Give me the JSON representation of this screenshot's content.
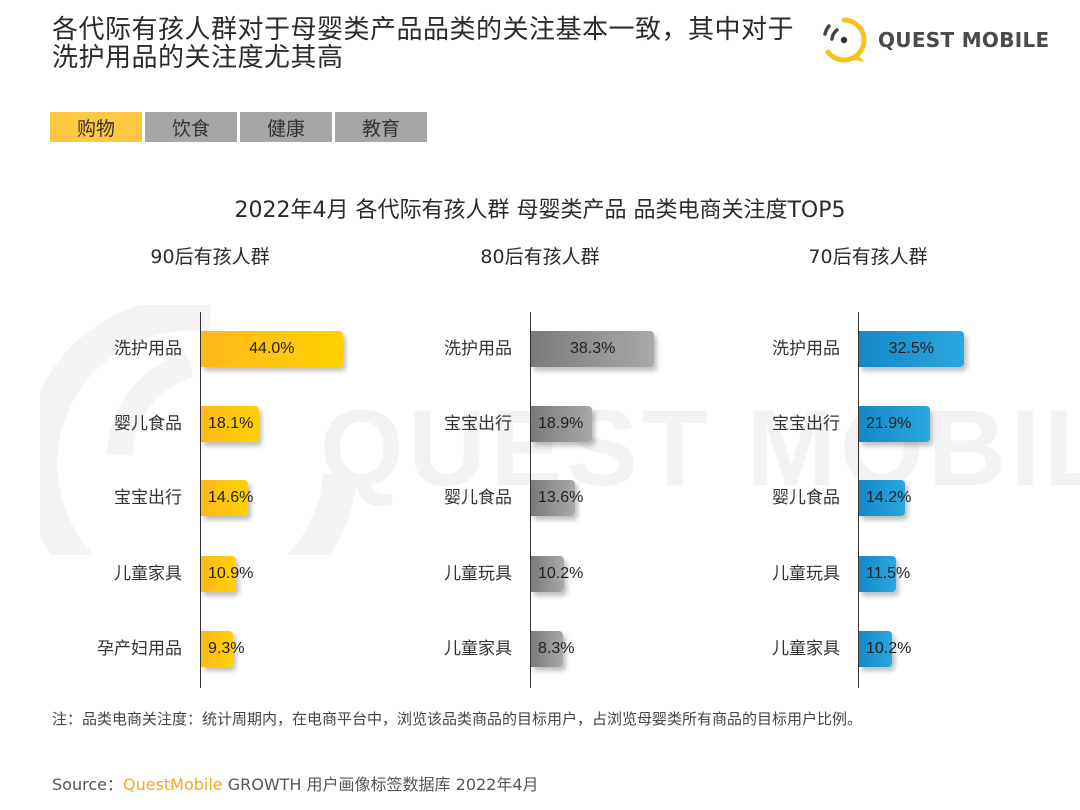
{
  "header": {
    "headline_line1": "各代际有孩人群对于母婴类产品品类的关注基本一致，其中对于",
    "headline_line2": "洗护用品的关注度尤其高",
    "logo_text": "QUEST MOBILE"
  },
  "tabs": [
    {
      "label": "购物",
      "active": true
    },
    {
      "label": "饮食",
      "active": false
    },
    {
      "label": "健康",
      "active": false
    },
    {
      "label": "教育",
      "active": false
    }
  ],
  "watermark": "QUEST MOBILE",
  "colors": {
    "yellow": "#ffc20e",
    "gray": "#8a8a8a",
    "blue": "#1e9ad6",
    "tab_active": "#ffc843",
    "tab_inactive": "#a6a6a6",
    "brand_orange": "#f5a623"
  },
  "chart_data": [
    {
      "type": "bar",
      "orientation": "horizontal",
      "title": "2022年4月 各代际有孩人群 母婴类产品 品类电商关注度TOP5",
      "subtitle": "90后有孩人群",
      "categories": [
        "洗护用品",
        "婴儿食品",
        "宝宝出行",
        "儿童家具",
        "孕产妇用品"
      ],
      "values": [
        44.0,
        18.1,
        14.6,
        10.9,
        9.3
      ],
      "labels": [
        "44.0%",
        "18.1%",
        "14.6%",
        "10.9%",
        "9.3%"
      ],
      "unit": "%",
      "color": "#ffc20e"
    },
    {
      "type": "bar",
      "orientation": "horizontal",
      "title": "2022年4月 各代际有孩人群 母婴类产品 品类电商关注度TOP5",
      "subtitle": "80后有孩人群",
      "categories": [
        "洗护用品",
        "宝宝出行",
        "婴儿食品",
        "儿童玩具",
        "儿童家具"
      ],
      "values": [
        38.3,
        18.9,
        13.6,
        10.2,
        8.3
      ],
      "labels": [
        "38.3%",
        "18.9%",
        "13.6%",
        "10.2%",
        "8.3%"
      ],
      "unit": "%",
      "color": "#8a8a8a"
    },
    {
      "type": "bar",
      "orientation": "horizontal",
      "title": "2022年4月 各代际有孩人群 母婴类产品 品类电商关注度TOP5",
      "subtitle": "70后有孩人群",
      "categories": [
        "洗护用品",
        "宝宝出行",
        "婴儿食品",
        "儿童玩具",
        "儿童家具"
      ],
      "values": [
        32.5,
        21.9,
        14.2,
        11.5,
        10.2
      ],
      "labels": [
        "32.5%",
        "21.9%",
        "14.2%",
        "11.5%",
        "10.2%"
      ],
      "unit": "%",
      "color": "#1e9ad6"
    }
  ],
  "chart": {
    "title": "2022年4月 各代际有孩人群 母婴类产品 品类电商关注度TOP5"
  },
  "footer": {
    "note": "注：品类电商关注度：统计周期内，在电商平台中，浏览该品类商品的目标用户，占浏览母婴类所有商品的目标用户比例。",
    "source_prefix": "Source：",
    "source_brand": "QuestMobile",
    "source_rest": " GROWTH 用户画像标签数据库 2022年4月"
  }
}
